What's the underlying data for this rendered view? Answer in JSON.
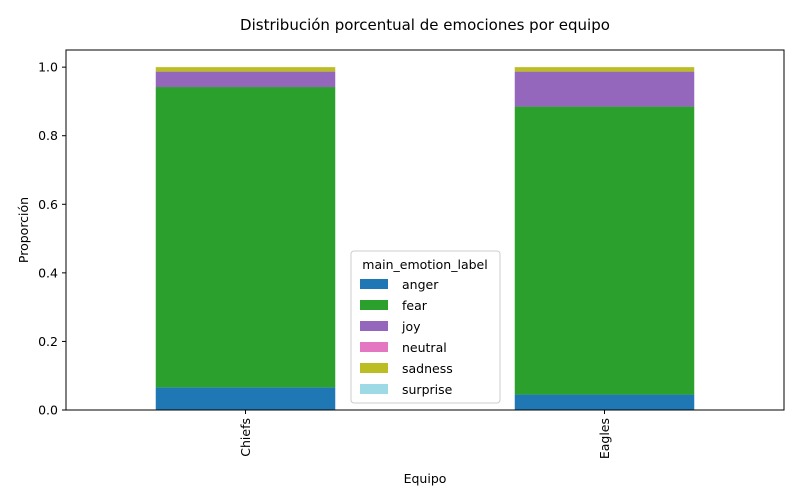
{
  "chart_data": {
    "type": "bar",
    "stacked": true,
    "title": "Distribución porcentual de emociones por equipo",
    "xlabel": "Equipo",
    "ylabel": "Proporción",
    "categories": [
      "Chiefs",
      "Eagles"
    ],
    "ylim": [
      0,
      1.05
    ],
    "yticks": [
      "0.0",
      "0.2",
      "0.4",
      "0.6",
      "0.8",
      "1.0"
    ],
    "grid": false,
    "legend": {
      "title": "main_emotion_label",
      "placement": "lower-center"
    },
    "series": [
      {
        "name": "anger",
        "color": "#1f77b4",
        "values": [
          0.066,
          0.045
        ]
      },
      {
        "name": "fear",
        "color": "#2ca02c",
        "values": [
          0.876,
          0.84
        ]
      },
      {
        "name": "joy",
        "color": "#9467bd",
        "values": [
          0.045,
          0.102
        ]
      },
      {
        "name": "neutral",
        "color": "#e377c2",
        "values": [
          0.0,
          0.0
        ]
      },
      {
        "name": "sadness",
        "color": "#bcbd22",
        "values": [
          0.013,
          0.013
        ]
      },
      {
        "name": "surprise",
        "color": "#9edae5",
        "values": [
          0.0,
          0.0
        ]
      }
    ]
  }
}
